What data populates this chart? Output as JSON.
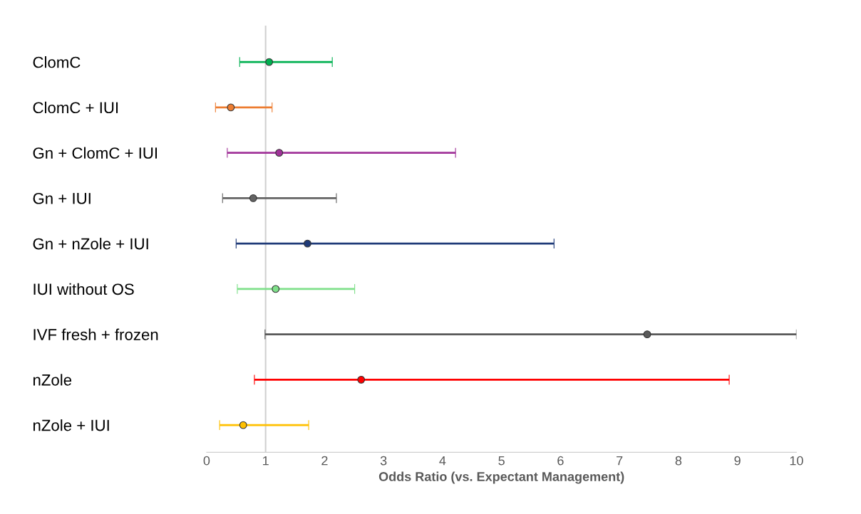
{
  "chart_data": {
    "type": "scatter",
    "orientation": "horizontal",
    "xlabel": "Odds Ratio (vs. Expectant Management)",
    "categories": [
      "ClomC",
      "ClomC + IUI",
      "Gn + ClomC + IUI",
      "Gn + IUI",
      "Gn + nZole + IUI",
      "IUI without OS",
      "IVF fresh + frozen",
      "nZole",
      "nZole + IUI"
    ],
    "values": [
      1.06,
      0.41,
      1.23,
      0.79,
      1.71,
      1.17,
      7.47,
      2.62,
      0.62
    ],
    "errors": [
      [
        0.56,
        2.13
      ],
      [
        0.15,
        1.11
      ],
      [
        0.35,
        4.22
      ],
      [
        0.27,
        2.2
      ],
      [
        0.5,
        5.89
      ],
      [
        0.52,
        2.51
      ],
      [
        0.99,
        10
      ],
      [
        0.81,
        8.86
      ],
      [
        0.22,
        1.73
      ]
    ],
    "colors": [
      "#00b050",
      "#ed7d31",
      "#a03399",
      "#636363",
      "#1f3a78",
      "#7fe08a",
      "#5a5a5a",
      "#ff0000",
      "#ffc000"
    ],
    "xlim": [
      0,
      10
    ],
    "xticks": [
      0,
      1,
      2,
      3,
      4,
      5,
      6,
      7,
      8,
      9,
      10
    ],
    "ref_lines": [
      {
        "axis": "x",
        "value": 1,
        "color": "#d0d0d0"
      }
    ],
    "marker": "circle",
    "grid": false,
    "legend": false
  }
}
